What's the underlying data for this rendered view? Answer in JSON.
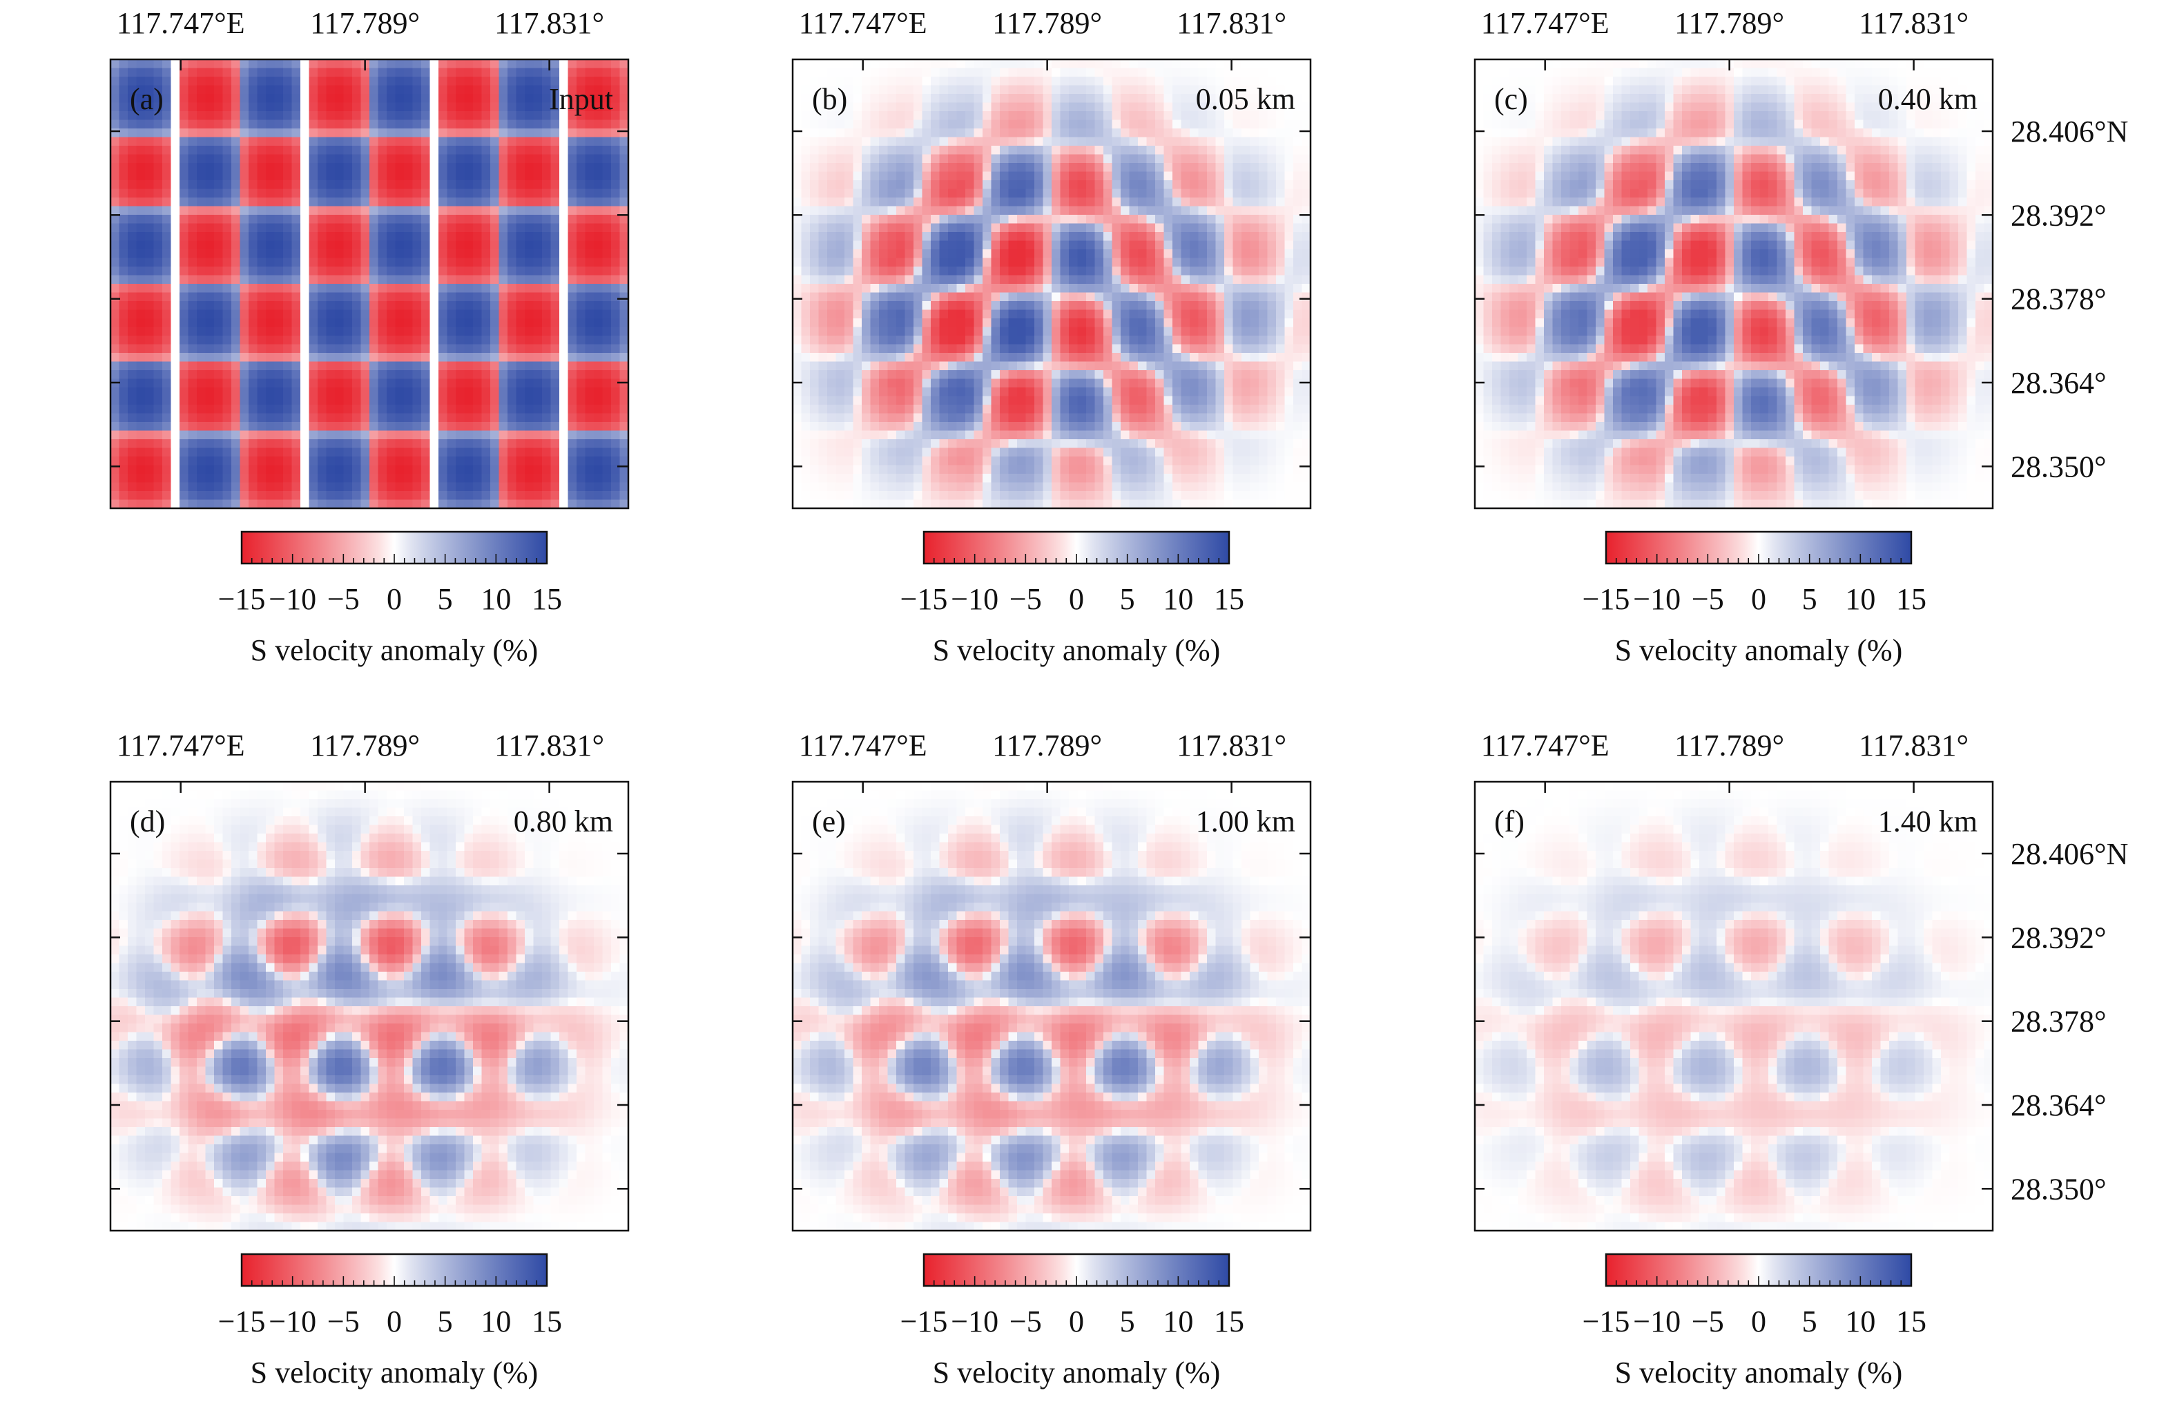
{
  "figure": {
    "top_x_ticks": [
      "117.747°E",
      "117.789°",
      "117.831°"
    ],
    "right_y_ticks": [
      "28.406°N",
      "28.392°",
      "28.378°",
      "28.364°",
      "28.350°"
    ],
    "colorbar_ticks": [
      "−15",
      "−10",
      "−5",
      "0",
      "5",
      "10",
      "15"
    ],
    "colorbar_label": "S velocity anomaly (%)"
  },
  "colors": {
    "negative": "#e8222d",
    "neutral": "#ffffff",
    "positive": "#2f4aa5",
    "axis": "#111111"
  },
  "chart_data": [
    {
      "type": "heatmap",
      "panel_label": "(a)",
      "annotation": "Input",
      "xlim": [
        117.731,
        117.849
      ],
      "ylim": [
        28.343,
        28.418
      ],
      "x_ticks": [
        117.747,
        117.789,
        117.831
      ],
      "y_ticks": [
        28.406,
        28.392,
        28.378,
        28.364,
        28.35
      ],
      "value_range": [
        -15,
        15
      ],
      "grid": {
        "x_cells": 8,
        "y_cells": 6,
        "amplitude": 15,
        "pattern": "checkerboard"
      }
    },
    {
      "type": "heatmap",
      "panel_label": "(b)",
      "annotation": "0.05 km",
      "xlim": [
        117.731,
        117.849
      ],
      "ylim": [
        28.343,
        28.418
      ],
      "x_ticks": [
        117.747,
        117.789,
        117.831
      ],
      "y_ticks": [
        28.406,
        28.392,
        28.378,
        28.364,
        28.35
      ],
      "value_range": [
        -15,
        15
      ],
      "recovery": {
        "mode": "grid",
        "amplitude": 14,
        "coverage_center": [
          117.789,
          28.378
        ]
      }
    },
    {
      "type": "heatmap",
      "panel_label": "(c)",
      "annotation": "0.40 km",
      "xlim": [
        117.731,
        117.849
      ],
      "ylim": [
        28.343,
        28.418
      ],
      "x_ticks": [
        117.747,
        117.789,
        117.831
      ],
      "y_ticks": [
        28.406,
        28.392,
        28.378,
        28.364,
        28.35
      ],
      "value_range": [
        -15,
        15
      ],
      "recovery": {
        "mode": "grid",
        "amplitude": 13,
        "coverage_center": [
          117.789,
          28.378
        ]
      }
    },
    {
      "type": "heatmap",
      "panel_label": "(d)",
      "annotation": "0.80 km",
      "xlim": [
        117.731,
        117.849
      ],
      "ylim": [
        28.343,
        28.418
      ],
      "x_ticks": [
        117.747,
        117.789,
        117.831
      ],
      "y_ticks": [
        28.406,
        28.392,
        28.378,
        28.364,
        28.35
      ],
      "value_range": [
        -15,
        15
      ],
      "recovery": {
        "mode": "diagonal",
        "amplitude": 11,
        "coverage_center": [
          117.786,
          28.376
        ]
      }
    },
    {
      "type": "heatmap",
      "panel_label": "(e)",
      "annotation": "1.00 km",
      "xlim": [
        117.731,
        117.849
      ],
      "ylim": [
        28.343,
        28.418
      ],
      "x_ticks": [
        117.747,
        117.789,
        117.831
      ],
      "y_ticks": [
        28.406,
        28.392,
        28.378,
        28.364,
        28.35
      ],
      "value_range": [
        -15,
        15
      ],
      "recovery": {
        "mode": "diagonal",
        "amplitude": 10,
        "coverage_center": [
          117.786,
          28.376
        ]
      }
    },
    {
      "type": "heatmap",
      "panel_label": "(f)",
      "annotation": "1.40 km",
      "xlim": [
        117.731,
        117.849
      ],
      "ylim": [
        28.343,
        28.418
      ],
      "x_ticks": [
        117.747,
        117.789,
        117.831
      ],
      "y_ticks": [
        28.406,
        28.392,
        28.378,
        28.364,
        28.35
      ],
      "value_range": [
        -15,
        15
      ],
      "recovery": {
        "mode": "diagonal",
        "amplitude": 5,
        "coverage_center": [
          117.786,
          28.376
        ]
      }
    }
  ]
}
